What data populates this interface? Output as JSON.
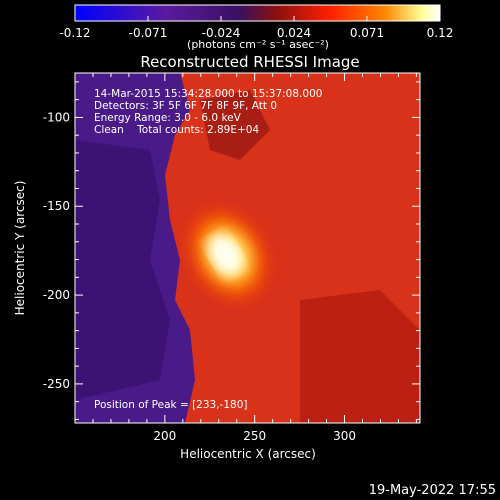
{
  "chart_data": {
    "type": "heatmap",
    "title": "Reconstructed RHESSI Image",
    "xlabel": "Heliocentric X (arcsec)",
    "ylabel": "Heliocentric Y (arcsec)",
    "xlim": [
      150,
      342
    ],
    "ylim": [
      -272,
      -75
    ],
    "x_ticks": [
      200,
      250,
      300
    ],
    "y_ticks": [
      -100,
      -150,
      -200,
      -250
    ],
    "colorbar": {
      "range": [
        -0.12,
        0.12
      ],
      "ticks": [
        "-0.12",
        "-0.071",
        "-0.024",
        "0.024",
        "0.071",
        "0.12"
      ],
      "unit_text": "(photons cm⁻² s⁻¹ asec⁻²)",
      "stops": [
        "#0000ff",
        "#5a1aa0",
        "#3a1060",
        "#8a1010",
        "#ff2000",
        "#ff8800",
        "#ffff99",
        "#ffffff"
      ]
    },
    "peak": {
      "x": 233,
      "y": -180,
      "value": 0.12
    },
    "annotations": {
      "time": "14-Mar-2015 15:34:28.000 to 15:37:08.000",
      "detectors": "Detectors: 3F 5F 6F 7F 8F 9F, Att 0",
      "energy": "Energy Range: 3.0 - 6.0 keV",
      "clean": "Clean    Total counts: 2.89E+04",
      "peak_text": "Position of Peak = [233,-180]"
    }
  },
  "footer": {
    "date": "19-May-2022 17:55"
  }
}
